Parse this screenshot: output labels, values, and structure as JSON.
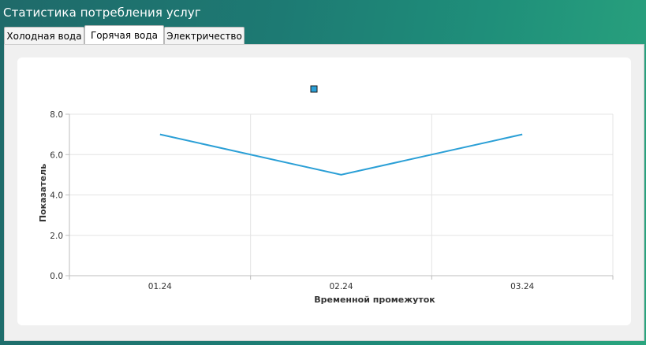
{
  "window": {
    "title": "Статистика потребления услуг"
  },
  "tabs": [
    {
      "label": "Холодная вода",
      "active": false
    },
    {
      "label": "Горячая вода",
      "active": true
    },
    {
      "label": "Электричество",
      "active": false
    }
  ],
  "chart_data": {
    "type": "line",
    "categories": [
      "01.24",
      "02.24",
      "03.24"
    ],
    "series": [
      {
        "values": [
          7.0,
          5.0,
          7.0
        ],
        "color": "#2a9fd6"
      }
    ],
    "yticks": [
      "0.0",
      "2.0",
      "4.0",
      "6.0",
      "8.0"
    ],
    "ylim": [
      0,
      8
    ],
    "xlabel": "Временной промежуток",
    "ylabel": "Показатель",
    "grid": true
  }
}
